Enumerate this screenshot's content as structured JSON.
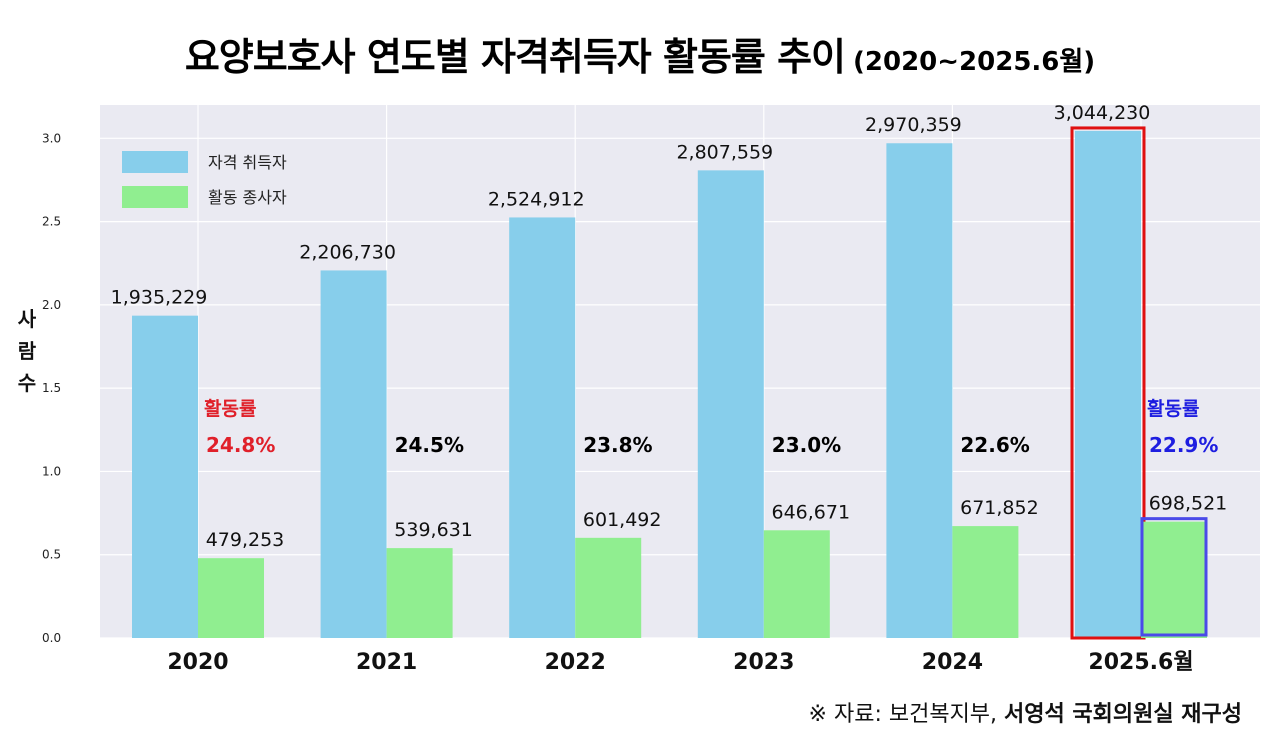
{
  "chart_data": {
    "type": "bar",
    "title": "요양보호사 연도별 자격취득자 활동률 추이",
    "subtitle": "(2020~2025.6월)",
    "categories": [
      "2020",
      "2021",
      "2022",
      "2023",
      "2024",
      "2025.6월"
    ],
    "series": [
      {
        "name": "자격 취득자",
        "values": [
          1935229,
          2206730,
          2524912,
          2807559,
          2970359,
          3044230
        ],
        "labels": [
          "1,935,229",
          "2,206,730",
          "2,524,912",
          "2,807,559",
          "2,970,359",
          "3,044,230"
        ],
        "color": "#87ceeb"
      },
      {
        "name": "활동 종사자",
        "values": [
          479253,
          539631,
          601492,
          646671,
          671852,
          698521
        ],
        "labels": [
          "479,253",
          "539,631",
          "601,492",
          "646,671",
          "671,852",
          "698,521"
        ],
        "color": "#90ee90"
      }
    ],
    "rates": [
      "24.8%",
      "24.5%",
      "23.8%",
      "23.0%",
      "22.6%",
      "22.9%"
    ],
    "rate_label": "활동률",
    "rate_colors": [
      "#e0202a",
      "#000000",
      "#000000",
      "#000000",
      "#000000",
      "#1e1ee0"
    ],
    "ylabel": "사람수",
    "ylim": [
      0,
      3.2
    ],
    "yticks": [
      0.0,
      0.5,
      1.0,
      1.5,
      2.0,
      2.5,
      3.0
    ],
    "ytick_labels": [
      "0.0",
      "0.5",
      "1.0",
      "1.5",
      "2.0",
      "2.5",
      "3.0"
    ],
    "y_scale": 1000000,
    "grid": true,
    "legend_position": "top-left",
    "highlight_category": "2025.6월",
    "highlight_colors": {
      "qualified": "#e01010",
      "active": "#4a4ae8"
    },
    "plot_background": "#eaeaf2"
  },
  "source": {
    "prefix": "※ 자료: 보건복지부, ",
    "emphasis": "서영석 국회의원실 재구성"
  }
}
